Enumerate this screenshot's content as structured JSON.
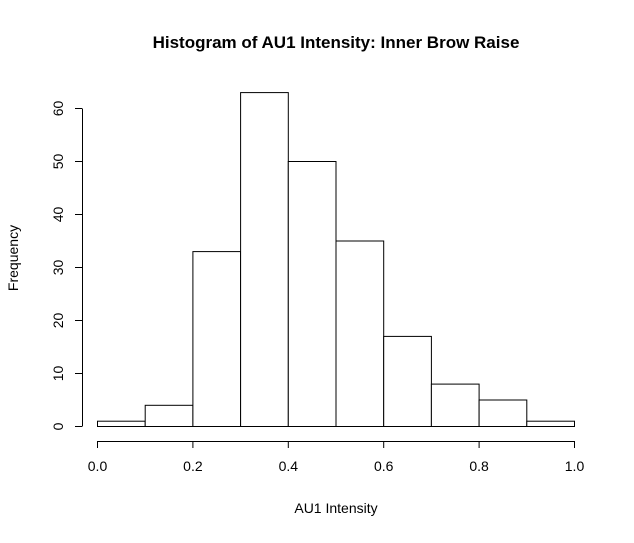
{
  "chart_data": {
    "type": "bar",
    "title": "Histogram of AU1 Intensity: Inner Brow Raise",
    "xlabel": "AU1 Intensity",
    "ylabel": "Frequency",
    "bins": [
      {
        "from": 0.0,
        "to": 0.1,
        "count": 1
      },
      {
        "from": 0.1,
        "to": 0.2,
        "count": 4
      },
      {
        "from": 0.2,
        "to": 0.3,
        "count": 33
      },
      {
        "from": 0.3,
        "to": 0.4,
        "count": 63
      },
      {
        "from": 0.4,
        "to": 0.5,
        "count": 50
      },
      {
        "from": 0.5,
        "to": 0.6,
        "count": 35
      },
      {
        "from": 0.6,
        "to": 0.7,
        "count": 17
      },
      {
        "from": 0.7,
        "to": 0.8,
        "count": 8
      },
      {
        "from": 0.8,
        "to": 0.9,
        "count": 5
      },
      {
        "from": 0.9,
        "to": 1.0,
        "count": 1
      }
    ],
    "xlim": [
      0.0,
      1.0
    ],
    "ylim": [
      0,
      60
    ],
    "xticks": [
      "0.0",
      "0.2",
      "0.4",
      "0.6",
      "0.8",
      "1.0"
    ],
    "yticks": [
      "0",
      "10",
      "20",
      "30",
      "40",
      "50",
      "60"
    ],
    "grid": false,
    "bar_fill": "#ffffff",
    "bar_stroke": "#000000"
  }
}
